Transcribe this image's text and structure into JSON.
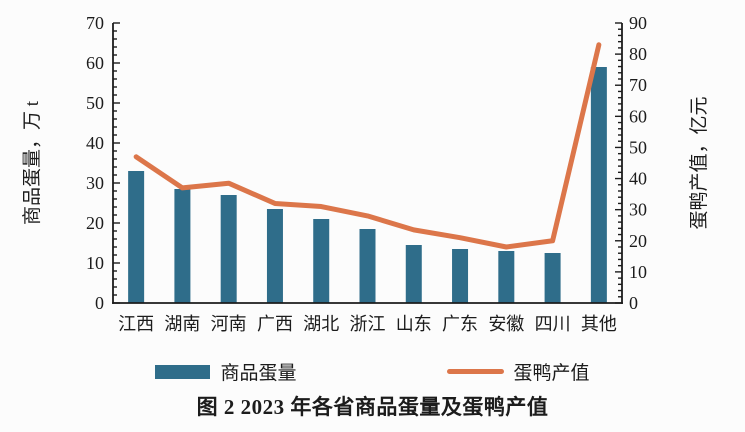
{
  "caption": "图 2  2023 年各省商品蛋量及蛋鸭产值",
  "colors": {
    "bar": "#2f6d8a",
    "line": "#dc764a",
    "axis": "#1c1c1c",
    "text": "#1c1c1c",
    "background": "#fcfcfc"
  },
  "chart_data": {
    "type": "bar+line",
    "categories": [
      "江西",
      "湖南",
      "河南",
      "广西",
      "湖北",
      "浙江",
      "山东",
      "广东",
      "安徽",
      "四川",
      "其他"
    ],
    "series": [
      {
        "name": "商品蛋量",
        "type": "bar",
        "axis": "left",
        "values": [
          33,
          28.5,
          27,
          23.5,
          21,
          18.5,
          14.5,
          13.5,
          13,
          12.5,
          59
        ]
      },
      {
        "name": "蛋鸭产值",
        "type": "line",
        "axis": "right",
        "values": [
          47,
          37,
          38.5,
          32,
          31,
          28,
          23.5,
          21,
          18,
          20,
          83
        ]
      }
    ],
    "left_axis": {
      "label": "商品蛋量，万 t",
      "min": 0,
      "max": 70,
      "major_step": 10,
      "minor_step": 2
    },
    "right_axis": {
      "label": "蛋鸭产值，亿元",
      "min": 0,
      "max": 90,
      "major_step": 10,
      "minor_step": 2
    },
    "grid": false,
    "legend_position": "bottom"
  }
}
